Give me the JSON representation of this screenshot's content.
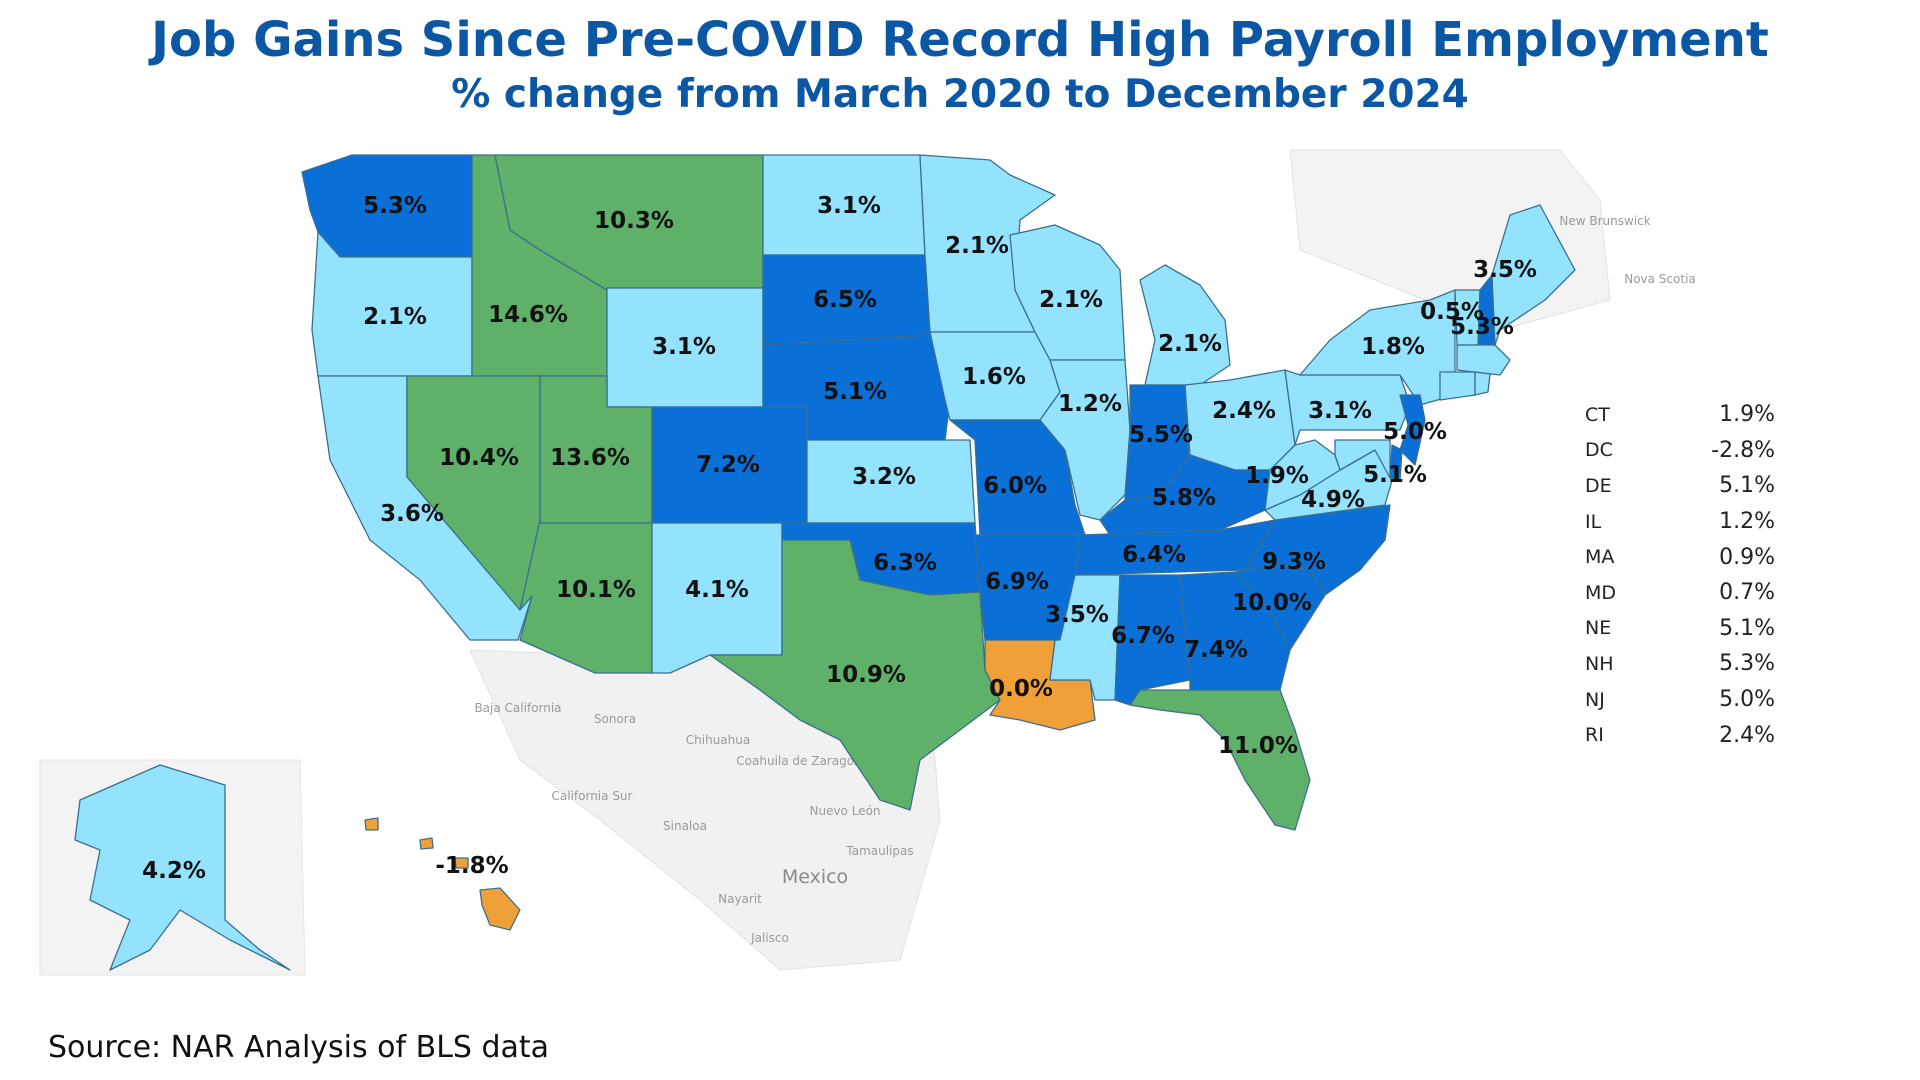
{
  "title": "Job Gains Since Pre-COVID Record High Payroll Employment",
  "subtitle": "% change from March 2020 to December 2024",
  "source": "Source: NAR Analysis of BLS data",
  "colors": {
    "dark_blue": "#0a6fd6",
    "light_blue": "#93e3ff",
    "green": "#5fb068",
    "orange": "#f0a038",
    "land_bg": "#f2f2f2"
  },
  "states": [
    {
      "code": "WA",
      "label": "5.3%",
      "value": 5.3,
      "color": "dark_blue"
    },
    {
      "code": "OR",
      "label": "2.1%",
      "value": 2.1,
      "color": "light_blue"
    },
    {
      "code": "CA",
      "label": "3.6%",
      "value": 3.6,
      "color": "light_blue"
    },
    {
      "code": "ID",
      "label": "14.6%",
      "value": 14.6,
      "color": "green"
    },
    {
      "code": "NV",
      "label": "10.4%",
      "value": 10.4,
      "color": "green"
    },
    {
      "code": "MT",
      "label": "10.3%",
      "value": 10.3,
      "color": "green"
    },
    {
      "code": "WY",
      "label": "3.1%",
      "value": 3.1,
      "color": "light_blue"
    },
    {
      "code": "UT",
      "label": "13.6%",
      "value": 13.6,
      "color": "green"
    },
    {
      "code": "AZ",
      "label": "10.1%",
      "value": 10.1,
      "color": "green"
    },
    {
      "code": "CO",
      "label": "7.2%",
      "value": 7.2,
      "color": "dark_blue"
    },
    {
      "code": "NM",
      "label": "4.1%",
      "value": 4.1,
      "color": "light_blue"
    },
    {
      "code": "ND",
      "label": "3.1%",
      "value": 3.1,
      "color": "light_blue"
    },
    {
      "code": "SD",
      "label": "6.5%",
      "value": 6.5,
      "color": "dark_blue"
    },
    {
      "code": "NE",
      "label": "5.1%",
      "value": 5.1,
      "color": "dark_blue"
    },
    {
      "code": "KS",
      "label": "3.2%",
      "value": 3.2,
      "color": "light_blue"
    },
    {
      "code": "OK",
      "label": "6.3%",
      "value": 6.3,
      "color": "dark_blue"
    },
    {
      "code": "TX",
      "label": "10.9%",
      "value": 10.9,
      "color": "green"
    },
    {
      "code": "MN",
      "label": "2.1%",
      "value": 2.1,
      "color": "light_blue"
    },
    {
      "code": "IA",
      "label": "1.6%",
      "value": 1.6,
      "color": "light_blue"
    },
    {
      "code": "MO",
      "label": "6.0%",
      "value": 6.0,
      "color": "dark_blue"
    },
    {
      "code": "AR",
      "label": "6.9%",
      "value": 6.9,
      "color": "dark_blue"
    },
    {
      "code": "LA",
      "label": "0.0%",
      "value": 0.0,
      "color": "orange"
    },
    {
      "code": "WI",
      "label": "2.1%",
      "value": 2.1,
      "color": "light_blue"
    },
    {
      "code": "IL",
      "label": "1.2%",
      "value": 1.2,
      "color": "light_blue"
    },
    {
      "code": "MI",
      "label": "2.1%",
      "value": 2.1,
      "color": "light_blue"
    },
    {
      "code": "IN",
      "label": "5.5%",
      "value": 5.5,
      "color": "dark_blue"
    },
    {
      "code": "OH",
      "label": "2.4%",
      "value": 2.4,
      "color": "light_blue"
    },
    {
      "code": "KY",
      "label": "5.8%",
      "value": 5.8,
      "color": "dark_blue"
    },
    {
      "code": "TN",
      "label": "6.4%",
      "value": 6.4,
      "color": "dark_blue"
    },
    {
      "code": "MS",
      "label": "3.5%",
      "value": 3.5,
      "color": "light_blue"
    },
    {
      "code": "AL",
      "label": "6.7%",
      "value": 6.7,
      "color": "dark_blue"
    },
    {
      "code": "GA",
      "label": "7.4%",
      "value": 7.4,
      "color": "dark_blue"
    },
    {
      "code": "FL",
      "label": "11.0%",
      "value": 11.0,
      "color": "green"
    },
    {
      "code": "SC",
      "label": "10.0%",
      "value": 10.0,
      "color": "dark_blue"
    },
    {
      "code": "NC",
      "label": "9.3%",
      "value": 9.3,
      "color": "dark_blue"
    },
    {
      "code": "VA",
      "label": "4.9%",
      "value": 4.9,
      "color": "light_blue"
    },
    {
      "code": "WV",
      "label": "1.9%",
      "value": 1.9,
      "color": "light_blue"
    },
    {
      "code": "PA",
      "label": "3.1%",
      "value": 3.1,
      "color": "light_blue"
    },
    {
      "code": "NY",
      "label": "1.8%",
      "value": 1.8,
      "color": "light_blue"
    },
    {
      "code": "VT",
      "label": "0.5%",
      "value": 0.5,
      "color": "light_blue"
    },
    {
      "code": "NH",
      "label": "5.3%",
      "value": 5.3,
      "color": "dark_blue"
    },
    {
      "code": "ME",
      "label": "3.5%",
      "value": 3.5,
      "color": "light_blue"
    },
    {
      "code": "NJ",
      "label": "5.0%",
      "value": 5.0,
      "color": "dark_blue"
    },
    {
      "code": "DE",
      "label": "5.1%",
      "value": 5.1,
      "color": "dark_blue"
    },
    {
      "code": "MD",
      "label": "0.7%",
      "value": 0.7,
      "color": "light_blue"
    },
    {
      "code": "CT",
      "label": "1.9%",
      "value": 1.9,
      "color": "light_blue"
    },
    {
      "code": "RI",
      "label": "2.4%",
      "value": 2.4,
      "color": "light_blue"
    },
    {
      "code": "MA",
      "label": "0.9%",
      "value": 0.9,
      "color": "light_blue"
    },
    {
      "code": "AK",
      "label": "4.2%",
      "value": 4.2,
      "color": "light_blue"
    },
    {
      "code": "HI",
      "label": "-1.8%",
      "value": -1.8,
      "color": "orange"
    }
  ],
  "legend": [
    {
      "code": "CT",
      "value": "1.9%"
    },
    {
      "code": "DC",
      "value": "-2.8%"
    },
    {
      "code": "DE",
      "value": "5.1%"
    },
    {
      "code": "IL",
      "value": "1.2%"
    },
    {
      "code": "MA",
      "value": "0.9%"
    },
    {
      "code": "MD",
      "value": "0.7%"
    },
    {
      "code": "NE",
      "value": "5.1%"
    },
    {
      "code": "NH",
      "value": "5.3%"
    },
    {
      "code": "NJ",
      "value": "5.0%"
    },
    {
      "code": "RI",
      "value": "2.4%"
    }
  ],
  "basemap_labels": {
    "mexico": "Mexico",
    "baja_california": "Baja California",
    "sonora": "Sonora",
    "chihuahua": "Chihuahua",
    "coahuila": "Coahuila de Zaragoza",
    "nuevo_leon": "Nuevo León",
    "tamaulipas": "Tamaulipas",
    "sinaloa": "Sinaloa",
    "nayarit": "Nayarit",
    "jalisco": "Jalisco",
    "california_sur": "California Sur",
    "new_brunswick": "New Brunswick",
    "nova_scotia": "Nova Scotia"
  }
}
